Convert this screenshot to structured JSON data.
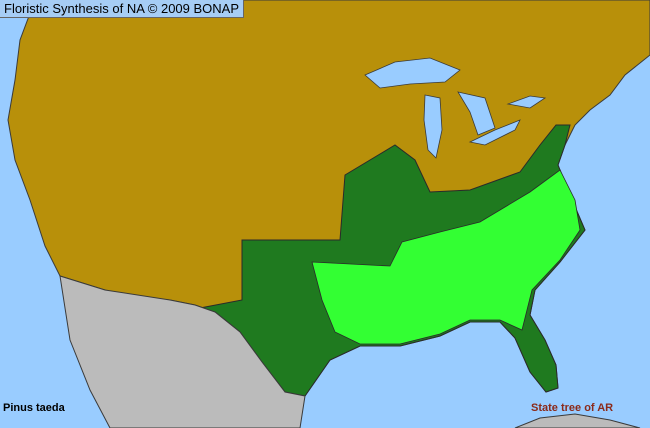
{
  "map": {
    "title": "Floristic Synthesis of NA © 2009 BONAP",
    "species": "Pinus taeda",
    "note": "State tree of AR",
    "colors": {
      "water": "#99ccff",
      "not_present": "#b8900a",
      "present_in_state": "#1f7a1f",
      "present_in_county": "#33ff33",
      "outside_region": "#bbbbbb",
      "borders": "#3a3a3a"
    }
  }
}
